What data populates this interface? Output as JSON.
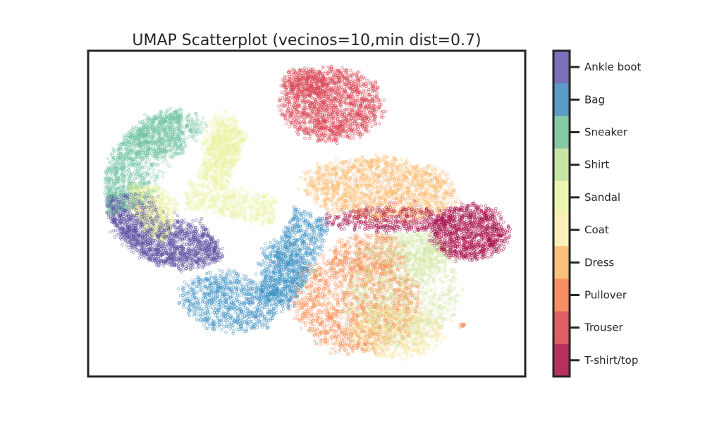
{
  "chart_data": {
    "type": "scatter",
    "title": "UMAP Scatterplot (vecinos=10,min dist=0.7)",
    "xlabel": "",
    "ylabel": "",
    "grid": false,
    "axes_ticks": false,
    "marker_style": "hollow-circles",
    "colorbar": {
      "placement": "right",
      "entries": [
        {
          "label": "Ankle boot",
          "color": "#7a6fb9"
        },
        {
          "label": "Bag",
          "color": "#5a9bc8"
        },
        {
          "label": "Sneaker",
          "color": "#85c9a5"
        },
        {
          "label": "Shirt",
          "color": "#c7e5a4"
        },
        {
          "label": "Sandal",
          "color": "#eef5b0"
        },
        {
          "label": "Coat",
          "color": "#fbf0b7"
        },
        {
          "label": "Dress",
          "color": "#fbc17b"
        },
        {
          "label": "Pullover",
          "color": "#f78f62"
        },
        {
          "label": "Trouser",
          "color": "#de6065"
        },
        {
          "label": "T-shirt/top",
          "color": "#b5325e"
        }
      ]
    },
    "clusters": [
      {
        "label": "Trouser",
        "color": "#d8404f",
        "approx_center": [
          0.56,
          0.85
        ],
        "shape": "compact blob, top"
      },
      {
        "label": "Sneaker",
        "color": "#6fc3a0",
        "approx_center": [
          0.17,
          0.7
        ],
        "shape": "upper band of left crescent"
      },
      {
        "label": "Sandal",
        "color": "#eaf2a3",
        "approx_center": [
          0.25,
          0.58
        ],
        "shape": "inner band of left crescent"
      },
      {
        "label": "Ankle boot",
        "color": "#5b4fa0",
        "approx_center": [
          0.18,
          0.45
        ],
        "shape": "lower band of left crescent"
      },
      {
        "label": "Bag",
        "color": "#3a8fc2",
        "approx_center": [
          0.36,
          0.28
        ],
        "shape": "hook-shaped cluster, lower middle"
      },
      {
        "label": "Dress",
        "color": "#fdb86a",
        "approx_center": [
          0.65,
          0.6
        ],
        "shape": "top of right mass"
      },
      {
        "label": "T-shirt/top",
        "color": "#a8104c",
        "approx_center": [
          0.83,
          0.44
        ],
        "shape": "right lobe of right mass"
      },
      {
        "label": "Pullover",
        "color": "#f98a4e",
        "approx_center": [
          0.55,
          0.22
        ],
        "shape": "lower part of right mass"
      },
      {
        "label": "Shirt",
        "color": "#cfe6a0",
        "approx_center": [
          0.7,
          0.27
        ],
        "shape": "mixed into lower right mass"
      },
      {
        "label": "Coat",
        "color": "#f7e39c",
        "approx_center": [
          0.62,
          0.15
        ],
        "shape": "bottom of right mass"
      }
    ]
  }
}
